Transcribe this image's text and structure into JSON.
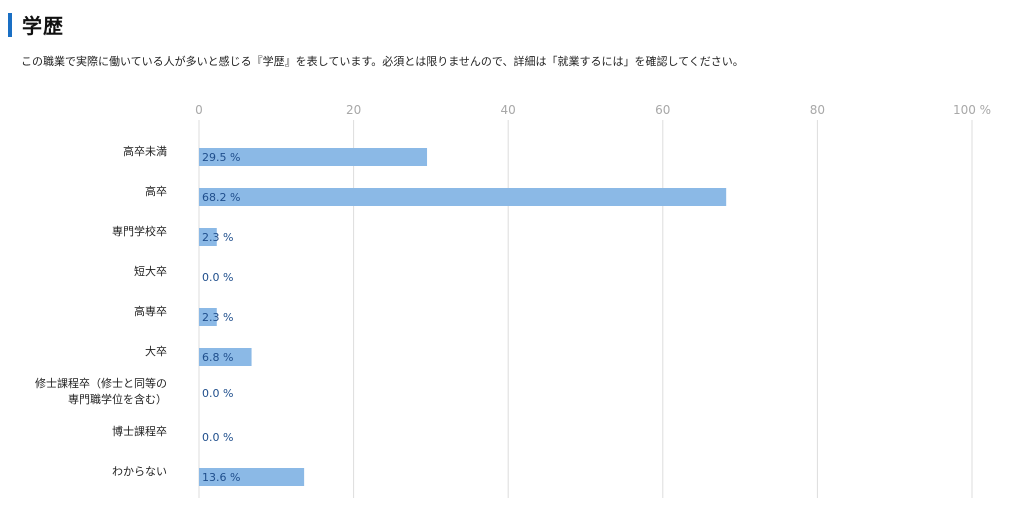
{
  "section": {
    "title": "学歴",
    "accent_color": "#1a6fc4",
    "description": "この職業で実際に働いている人が多いと感じる『学歴』を表しています。必須とは限りませんので、詳細は「就業するには」を確認してください。"
  },
  "chart_data": {
    "type": "bar",
    "orientation": "horizontal",
    "title": "",
    "xlabel": "",
    "ylabel": "",
    "xlim": [
      0,
      100
    ],
    "ticks": [
      0,
      20,
      40,
      60,
      80,
      100
    ],
    "tick_unit": "%",
    "value_unit": " %",
    "grid": true,
    "bar_color": "#8bb9e6",
    "grid_color": "#dddddd",
    "categories": [
      [
        "高卒未満"
      ],
      [
        "高卒"
      ],
      [
        "専門学校卒"
      ],
      [
        "短大卒"
      ],
      [
        "高専卒"
      ],
      [
        "大卒"
      ],
      [
        "修士課程卒（修士と同等の",
        "専門職学位を含む）"
      ],
      [
        "博士課程卒"
      ],
      [
        "わからない"
      ]
    ],
    "values": [
      29.5,
      68.2,
      2.3,
      0.0,
      2.3,
      6.8,
      0.0,
      0.0,
      13.6
    ]
  }
}
